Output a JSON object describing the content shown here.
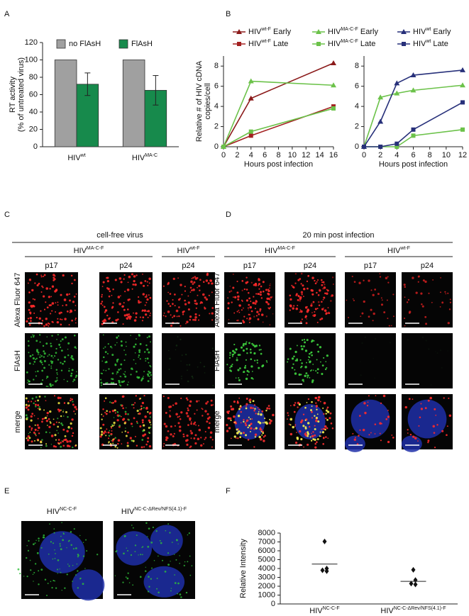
{
  "panel_labels": [
    "A",
    "B",
    "C",
    "D",
    "E",
    "F"
  ],
  "chart_data": [
    {
      "type": "bar",
      "ylabel": [
        "RT activity",
        "(% of untreated virus)"
      ],
      "categories": [
        "HIVwt",
        "HIVMA-C"
      ],
      "series": [
        {
          "name": "no FlAsH",
          "color": "#a0a0a0",
          "values": [
            100,
            100
          ]
        },
        {
          "name": "FlAsH",
          "color": "#178a4c",
          "values": [
            72,
            65
          ],
          "errors": [
            13,
            17
          ]
        }
      ],
      "ylim": [
        0,
        120
      ],
      "yticks": [
        0,
        20,
        40,
        60,
        80,
        100,
        120
      ]
    },
    {
      "type": "line",
      "ylabel": [
        "Relative # of HIV cDNA",
        "copies/cell"
      ],
      "xlabel": "Hours post infection",
      "x": [
        0,
        4,
        16
      ],
      "series": [
        {
          "name": "HIVwt-F Early",
          "color": "#8b1a1a",
          "marker": "triangle",
          "values": [
            0,
            4.8,
            8.3
          ]
        },
        {
          "name": "HIVwt-F Late",
          "color": "#a32020",
          "marker": "square",
          "values": [
            0,
            1.1,
            4.0
          ]
        },
        {
          "name": "HIVMA-C-F Early",
          "color": "#6cc24a",
          "marker": "triangle",
          "values": [
            0,
            6.5,
            6.1
          ]
        },
        {
          "name": "HIVMA-C-F Late",
          "color": "#6cc24a",
          "marker": "square",
          "values": [
            0,
            1.5,
            3.8
          ]
        }
      ],
      "xlim": [
        0,
        16
      ],
      "xticks": [
        0,
        2,
        4,
        6,
        8,
        10,
        12,
        14,
        16
      ],
      "ylim": [
        0,
        9
      ],
      "yticks": [
        0,
        2,
        4,
        6,
        8
      ]
    },
    {
      "type": "line",
      "xlabel": "Hours post infection",
      "x": [
        0,
        2,
        4,
        6,
        12
      ],
      "series": [
        {
          "color": "#6cc24a",
          "marker": "triangle",
          "values": [
            0,
            4.9,
            5.3,
            5.6,
            6.1
          ]
        },
        {
          "color": "#6cc24a",
          "marker": "square",
          "values": [
            0,
            0,
            0,
            1.1,
            1.7
          ]
        },
        {
          "name": "HIVwt Early",
          "color": "#27307a",
          "marker": "triangle",
          "values": [
            0,
            2.5,
            6.3,
            7.1,
            7.6
          ]
        },
        {
          "name": "HIVwt Late",
          "color": "#27307a",
          "marker": "square",
          "values": [
            0,
            0,
            0.3,
            1.7,
            4.4
          ]
        }
      ],
      "xlim": [
        0,
        12
      ],
      "xticks": [
        0,
        2,
        4,
        6,
        8,
        10,
        12
      ],
      "ylim": [
        0,
        9
      ],
      "yticks": [
        0,
        2,
        4,
        6,
        8
      ]
    },
    {
      "type": "strip",
      "ylabel": "Relative Intensity",
      "categories": [
        "HIVNC-C-F",
        "HIVNC-C-ΔRev/NFS(4.1)-F"
      ],
      "points": [
        [
          7050,
          4000,
          3800,
          3700
        ],
        [
          3850,
          2700,
          2300,
          2200
        ]
      ],
      "means": [
        4500,
        2550
      ],
      "color": "#111111",
      "ylim": [
        0,
        8000
      ],
      "yticks": [
        0,
        1000,
        2000,
        3000,
        4000,
        5000,
        6000,
        7000,
        8000
      ]
    }
  ],
  "panel_c": {
    "title": "cell-free virus",
    "groups": [
      {
        "label": "HIVMA-C-F",
        "columns": [
          "p17",
          "p24"
        ]
      },
      {
        "label": "HIVwt-F",
        "columns": [
          "p24"
        ]
      }
    ],
    "rows": [
      "Alexa Fluor 647",
      "FlAsH",
      "merge"
    ]
  },
  "panel_d": {
    "title": "20 min post infection",
    "groups": [
      {
        "label": "HIVMA-C-F",
        "columns": [
          "p17",
          "p24"
        ]
      },
      {
        "label": "HIVwt-F",
        "columns": [
          "p17",
          "p24"
        ]
      }
    ],
    "rows": [
      "Alexa Fluor 647",
      "FlAsH",
      "merge"
    ]
  },
  "panel_e": {
    "images": [
      "HIVNC-C-F",
      "HIVNC-C-ΔRev/NFS(4.1)-F"
    ]
  }
}
